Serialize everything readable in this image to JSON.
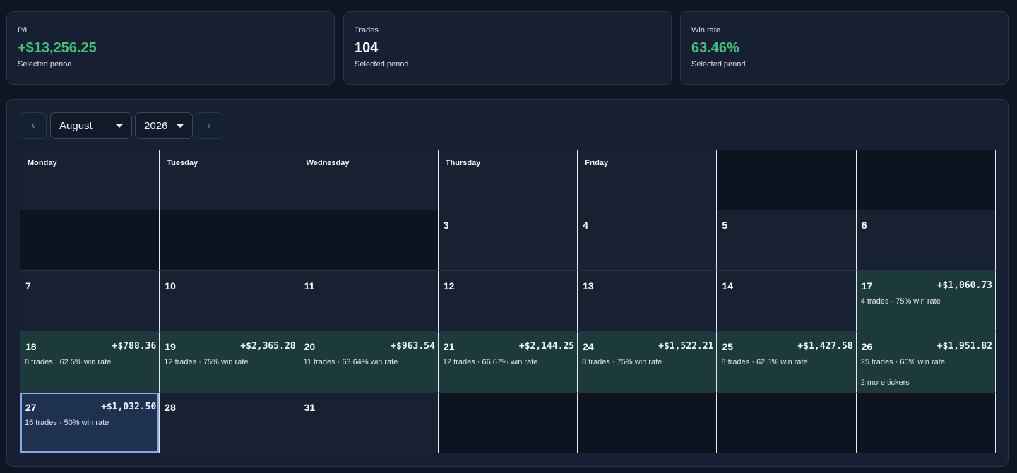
{
  "stats": {
    "pl": {
      "label": "P/L",
      "value": "+$13,256.25",
      "sub": "Selected period"
    },
    "trades": {
      "label": "Trades",
      "value": "104",
      "sub": "Selected period"
    },
    "winrate": {
      "label": "Win rate",
      "value": "63.46%",
      "sub": "Selected period"
    }
  },
  "calendar": {
    "prev_icon": "chevron-left-icon",
    "next_icon": "chevron-right-icon",
    "month": "August",
    "year": "2026",
    "weekdays": [
      "Monday",
      "Tuesday",
      "Wednesday",
      "Thursday",
      "Friday",
      "",
      ""
    ],
    "rows": [
      [
        {
          "empty": true
        },
        {
          "empty": true
        },
        {
          "empty": true
        },
        {
          "day": "3"
        },
        {
          "day": "4"
        },
        {
          "day": "5"
        },
        {
          "day": "6"
        }
      ],
      [
        {
          "day": "7"
        },
        {
          "day": "10"
        },
        {
          "day": "11"
        },
        {
          "day": "12"
        },
        {
          "day": "13"
        },
        {
          "day": "14"
        },
        {
          "day": "17",
          "pnl": "+$1,060.73",
          "summary": "4 trades · 75% win rate"
        }
      ],
      [
        {
          "day": "18",
          "pnl": "+$788.36",
          "summary": "8 trades · 62.5% win rate"
        },
        {
          "day": "19",
          "pnl": "+$2,365.28",
          "summary": "12 trades · 75% win rate"
        },
        {
          "day": "20",
          "pnl": "+$963.54",
          "summary": "11 trades · 63.64% win rate"
        },
        {
          "day": "21",
          "pnl": "+$2,144.25",
          "summary": "12 trades · 66.67% win rate"
        },
        {
          "day": "24",
          "pnl": "+$1,522.21",
          "summary": "8 trades · 75% win rate"
        },
        {
          "day": "25",
          "pnl": "+$1,427.58",
          "summary": "8 trades · 62.5% win rate"
        },
        {
          "day": "26",
          "pnl": "+$1,951.82",
          "summary": "25 trades · 60% win rate",
          "extra": "2 more tickers"
        }
      ],
      [
        {
          "day": "27",
          "pnl": "+$1,032.50",
          "summary": "16 trades · 50% win rate",
          "selected": true
        },
        {
          "day": "28"
        },
        {
          "day": "31"
        },
        {
          "empty": true
        },
        {
          "empty": true
        },
        {
          "empty": true
        },
        {
          "empty": true
        }
      ]
    ]
  }
}
